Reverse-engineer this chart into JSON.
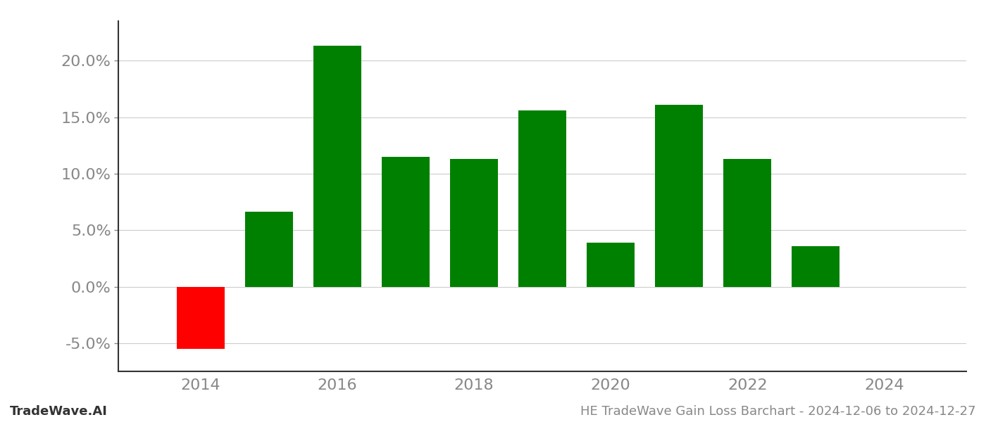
{
  "years": [
    2014,
    2015,
    2016,
    2017,
    2018,
    2019,
    2020,
    2021,
    2022,
    2023
  ],
  "values": [
    -0.055,
    0.066,
    0.213,
    0.115,
    0.113,
    0.156,
    0.039,
    0.161,
    0.113,
    0.036
  ],
  "colors": [
    "#ff0000",
    "#008000",
    "#008000",
    "#008000",
    "#008000",
    "#008000",
    "#008000",
    "#008000",
    "#008000",
    "#008000"
  ],
  "ylim": [
    -0.075,
    0.235
  ],
  "yticks": [
    -0.05,
    0.0,
    0.05,
    0.1,
    0.15,
    0.2
  ],
  "xticks": [
    2014,
    2016,
    2018,
    2020,
    2022,
    2024
  ],
  "footer_left": "TradeWave.AI",
  "footer_right": "HE TradeWave Gain Loss Barchart - 2024-12-06 to 2024-12-27",
  "background_color": "#ffffff",
  "grid_color": "#cccccc",
  "bar_width": 0.7,
  "ytick_fontsize": 16,
  "xtick_fontsize": 16,
  "footer_fontsize": 13
}
